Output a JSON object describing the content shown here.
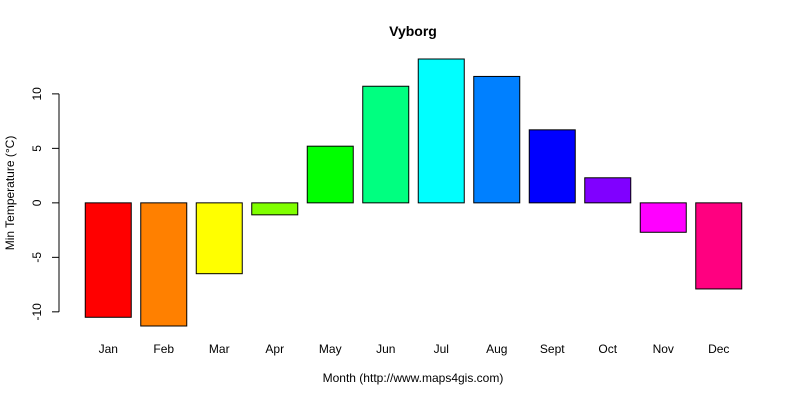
{
  "chart_data": {
    "type": "bar",
    "title": "Vyborg",
    "xlabel": "Month (http://www.maps4gis.com)",
    "ylabel": "Min Temperature (°C)",
    "categories": [
      "Jan",
      "Feb",
      "Mar",
      "Apr",
      "May",
      "Jun",
      "Jul",
      "Aug",
      "Sept",
      "Oct",
      "Nov",
      "Dec"
    ],
    "values": [
      -10.5,
      -11.3,
      -6.5,
      -1.1,
      5.2,
      10.7,
      13.2,
      11.6,
      6.7,
      2.3,
      -2.7,
      -7.9
    ],
    "colors": [
      "#FF0000",
      "#FF8000",
      "#FFFF00",
      "#80FF00",
      "#00FF00",
      "#00FF80",
      "#00FFFF",
      "#0080FF",
      "#0000FF",
      "#8000FF",
      "#FF00FF",
      "#FF0080"
    ],
    "yticks": [
      -10,
      -5,
      0,
      5,
      10
    ],
    "ytick_labels": [
      "-10",
      "-5",
      "0",
      "5",
      "10"
    ],
    "ylim": [
      -11.3,
      13.2
    ],
    "grid": false,
    "legend": "none"
  }
}
